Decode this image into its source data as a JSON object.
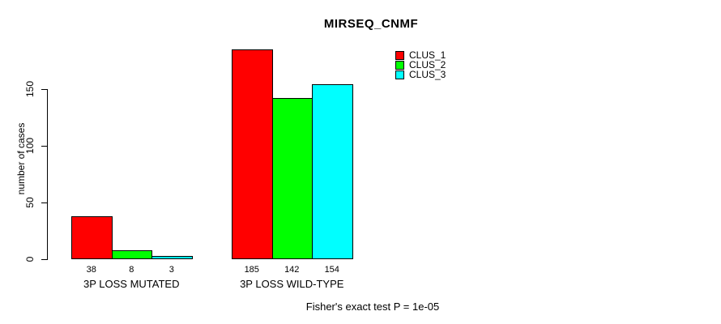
{
  "chart_data": {
    "type": "bar",
    "title": "MIRSEQ_CNMF",
    "ylabel": "number of cases",
    "footer": "Fisher's exact test P = 1e-05",
    "groups": [
      "3P LOSS MUTATED",
      "3P LOSS WILD-TYPE"
    ],
    "series": [
      {
        "name": "CLUS_1",
        "color": "#FF0000",
        "values": [
          38,
          185
        ]
      },
      {
        "name": "CLUS_2",
        "color": "#00FF00",
        "values": [
          8,
          142
        ]
      },
      {
        "name": "CLUS_3",
        "color": "#00FFFF",
        "values": [
          3,
          154
        ]
      }
    ],
    "yticks": [
      0,
      50,
      100,
      150
    ],
    "ylim": [
      0,
      185
    ],
    "bar_value_labels": true,
    "grid": false,
    "legend_position": "top-right",
    "axis_color": "#000000",
    "background_color": "#FFFFFF"
  }
}
